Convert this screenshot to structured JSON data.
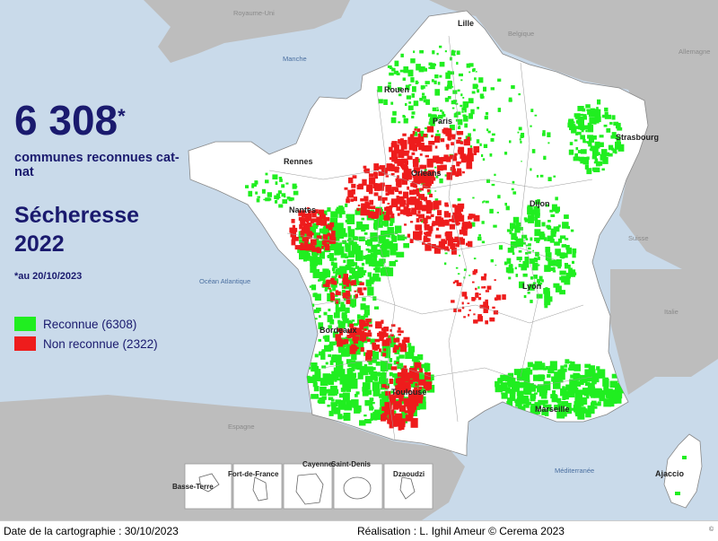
{
  "headline": {
    "count": "6 308",
    "asterisk": "*",
    "count_label": "communes reconnues cat-nat",
    "event": "Sécheresse 2022",
    "date_note": "*au 20/10/2023"
  },
  "legend": [
    {
      "label": "Reconnue (6308)",
      "color": "#20ee20"
    },
    {
      "label": "Non reconnue (2322)",
      "color": "#ee1c1c"
    }
  ],
  "colors": {
    "sea": "#c9daea",
    "neighbor_land": "#bdbdbd",
    "france_land": "#ffffff",
    "recognized": "#20ee20",
    "not_recognized": "#ee1c1c",
    "title_text": "#1a1a6e"
  },
  "cities": [
    {
      "name": "Lille"
    },
    {
      "name": "Rouen"
    },
    {
      "name": "Paris"
    },
    {
      "name": "Strasbourg"
    },
    {
      "name": "Rennes"
    },
    {
      "name": "Orléans"
    },
    {
      "name": "Nantes"
    },
    {
      "name": "Dijon"
    },
    {
      "name": "Lyon"
    },
    {
      "name": "Bordeaux"
    },
    {
      "name": "Toulouse"
    },
    {
      "name": "Marseille"
    },
    {
      "name": "Ajaccio"
    }
  ],
  "countries": [
    {
      "name": "Royaume-Uni"
    },
    {
      "name": "Belgique"
    },
    {
      "name": "Allemagne"
    },
    {
      "name": "Suisse"
    },
    {
      "name": "Italie"
    },
    {
      "name": "Espagne"
    }
  ],
  "seas": [
    {
      "name": "Manche"
    },
    {
      "name": "Océan Atlantique"
    },
    {
      "name": "Méditerranée"
    }
  ],
  "overseas": [
    {
      "name": "Basse-Terre"
    },
    {
      "name": "Fort-de-France"
    },
    {
      "name": "Cayenne"
    },
    {
      "name": "Saint-Denis"
    },
    {
      "name": "Dzaoudzi"
    }
  ],
  "footer": {
    "date": "Date de la cartographie : 30/10/2023",
    "credit": "Réalisation : L. Ighil Ameur © Cerema 2023",
    "mark": "©"
  }
}
